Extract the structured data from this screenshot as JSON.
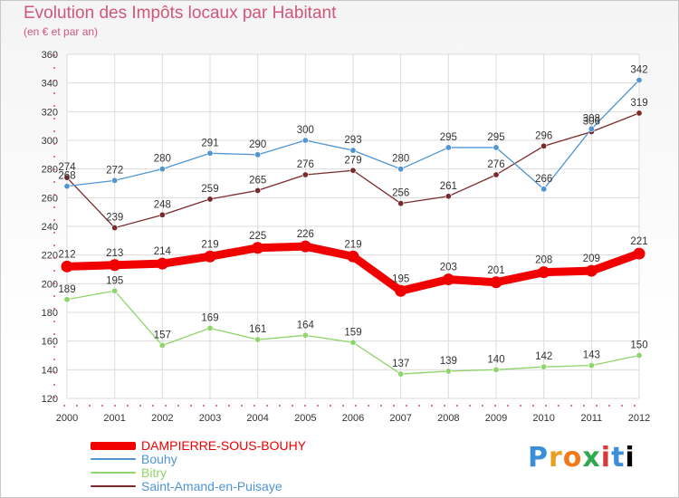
{
  "header": {
    "title": "Evolution des Impôts locaux par Habitant",
    "subtitle": "(en € et par an)"
  },
  "logo": {
    "letters": [
      "P",
      "r",
      "o",
      "x",
      "i",
      "t",
      "i"
    ]
  },
  "chart_data": {
    "type": "line",
    "title": "Evolution des Impôts locaux par Habitant",
    "subtitle": "(en € et par an)",
    "xlabel": "",
    "ylabel": "",
    "ylim": [
      120,
      360
    ],
    "yticks": [
      120,
      140,
      160,
      180,
      200,
      220,
      240,
      260,
      280,
      300,
      320,
      340,
      360
    ],
    "grid": true,
    "legend_position": "bottom-left",
    "x": [
      "2000",
      "2001",
      "2002",
      "2003",
      "2004",
      "2005",
      "2006",
      "2007",
      "2008",
      "2009",
      "2010",
      "2011",
      "2012"
    ],
    "series": [
      {
        "name": "DAMPIERRE-SOUS-BOUHY",
        "color": "#f00000",
        "values": [
          212,
          213,
          214,
          219,
          225,
          226,
          219,
          195,
          203,
          201,
          208,
          209,
          221
        ]
      },
      {
        "name": "Bouhy",
        "color": "#4f95d2",
        "values": [
          268,
          272,
          280,
          291,
          290,
          300,
          293,
          280,
          295,
          295,
          266,
          308,
          342
        ]
      },
      {
        "name": "Bitry",
        "color": "#8fd56a",
        "values": [
          189,
          195,
          157,
          169,
          161,
          164,
          159,
          137,
          139,
          140,
          142,
          143,
          150
        ]
      },
      {
        "name": "Saint-Amand-en-Puisaye",
        "color": "#7a2a2a",
        "values": [
          274,
          239,
          248,
          259,
          265,
          276,
          279,
          256,
          261,
          276,
          296,
          306,
          319
        ]
      }
    ]
  }
}
